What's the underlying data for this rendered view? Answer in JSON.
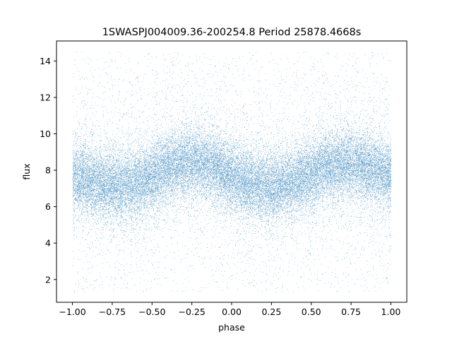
{
  "chart_data": {
    "type": "scatter",
    "title": "1SWASPJ004009.36-200254.8 Period 25878.4668s",
    "xlabel": "phase",
    "ylabel": "flux",
    "xlim": [
      -1.1,
      1.1
    ],
    "ylim": [
      0.75,
      15.1
    ],
    "xticks": [
      -1.0,
      -0.75,
      -0.5,
      -0.25,
      0.0,
      0.25,
      0.5,
      0.75,
      1.0
    ],
    "xtick_labels": [
      "−1.00",
      "−0.75",
      "−0.50",
      "−0.25",
      "0.00",
      "0.25",
      "0.50",
      "0.75",
      "1.00"
    ],
    "yticks": [
      2,
      4,
      6,
      8,
      10,
      12,
      14
    ],
    "ytick_labels": [
      "2",
      "4",
      "6",
      "8",
      "10",
      "12",
      "14"
    ],
    "grid": false,
    "legend": "none",
    "point_color": "#1f77b4",
    "series": [
      {
        "phase": [
          -1.0,
          -0.9,
          -0.8,
          -0.7,
          -0.6,
          -0.5,
          -0.4,
          -0.3,
          -0.2,
          -0.1,
          0.0,
          0.1,
          0.2,
          0.3,
          0.4,
          0.5,
          0.6,
          0.7,
          0.8,
          0.9,
          1.0
        ],
        "flux": [
          7.6,
          7.4,
          7.2,
          7.1,
          7.3,
          7.7,
          8.1,
          8.4,
          8.4,
          8.1,
          7.6,
          7.3,
          7.1,
          7.1,
          7.4,
          7.8,
          8.2,
          8.4,
          8.3,
          8.0,
          7.6
        ],
        "spread_core": 0.95,
        "flux_range": [
          1.3,
          14.5
        ],
        "point_count_approx": 60000
      }
    ]
  }
}
